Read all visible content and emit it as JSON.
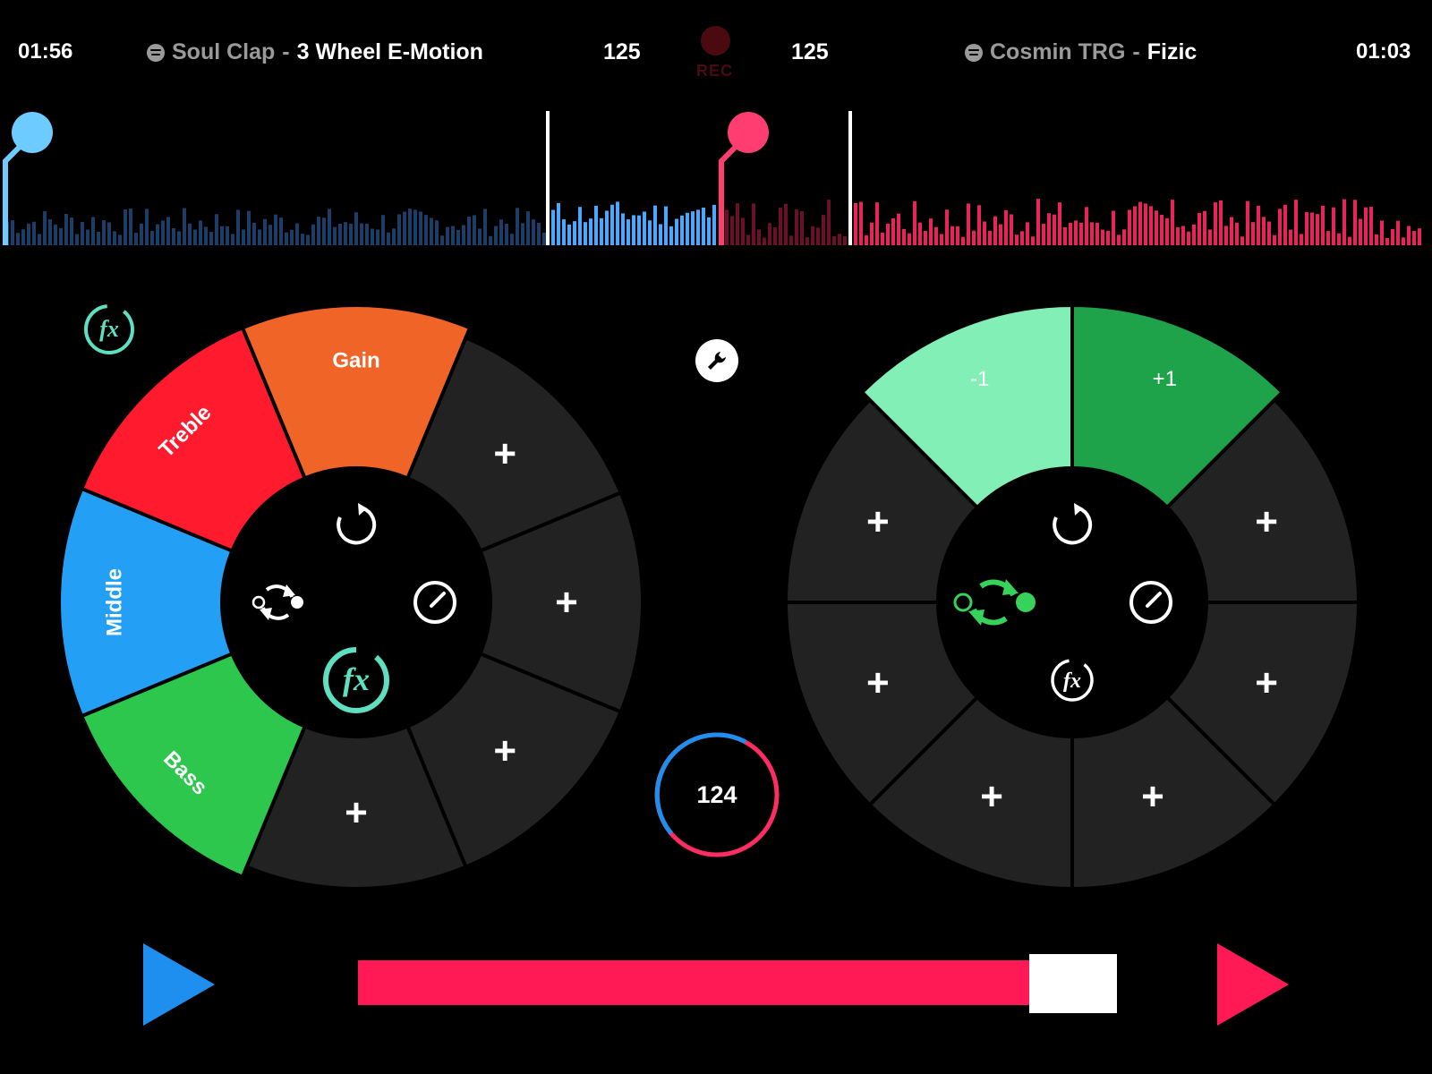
{
  "header": {
    "left_time": "01:56",
    "left_artist": "Soul Clap",
    "left_separator": "-",
    "left_title": "3 Wheel E-Motion",
    "left_bpm": "125",
    "rec_label": "REC",
    "right_bpm": "125",
    "right_artist": "Cosmin TRG",
    "right_separator": "-",
    "right_title": "Fizic",
    "right_time": "01:03"
  },
  "colors": {
    "deck_left": "#4aa8ff",
    "deck_right": "#ff2d63",
    "segment_empty": "#222222",
    "gain": "#f06428",
    "treble": "#ff1a2d",
    "middle": "#23a0f5",
    "bass": "#2ec74e",
    "fx_teal": "#5ee0c0",
    "pitch_minus": "#82efb6",
    "pitch_plus": "#1fa34a",
    "sync_active": "#37d25a"
  },
  "deck_left": {
    "segments": [
      {
        "label": "Gain",
        "color_key": "gain",
        "kind": "label"
      },
      {
        "label": "+",
        "kind": "add"
      },
      {
        "label": "+",
        "kind": "add"
      },
      {
        "label": "+",
        "kind": "add"
      },
      {
        "label": "+",
        "kind": "add"
      },
      {
        "label": "Bass",
        "color_key": "bass",
        "kind": "label"
      },
      {
        "label": "Middle",
        "color_key": "middle",
        "kind": "label"
      },
      {
        "label": "Treble",
        "color_key": "treble",
        "kind": "label"
      }
    ],
    "hub_icons": [
      "loop-icon",
      "tempo-gauge-icon",
      "fx-icon",
      "sync-icon"
    ],
    "fx_active": true,
    "sync_active": false
  },
  "deck_right": {
    "segments": [
      {
        "label": "+1",
        "color_key": "pitch_plus",
        "kind": "label"
      },
      {
        "label": "+",
        "kind": "add"
      },
      {
        "label": "+",
        "kind": "add"
      },
      {
        "label": "+",
        "kind": "add"
      },
      {
        "label": "+",
        "kind": "add"
      },
      {
        "label": "+",
        "kind": "add"
      },
      {
        "label": "+",
        "kind": "add"
      },
      {
        "label": "-1",
        "color_key": "pitch_minus",
        "kind": "label"
      }
    ],
    "hub_icons": [
      "loop-icon",
      "tempo-gauge-icon",
      "fx-icon",
      "sync-icon"
    ],
    "fx_active": false,
    "sync_active": true
  },
  "center": {
    "master_bpm": "124",
    "settings_icon": "wrench-icon"
  },
  "crossfader": {
    "position": 0.85
  },
  "transport": {
    "left_play_icon": "play-icon",
    "right_play_icon": "play-icon"
  },
  "waveform": {
    "left_playhead_fraction": 0.5,
    "right_playhead_fraction": 0.6
  }
}
